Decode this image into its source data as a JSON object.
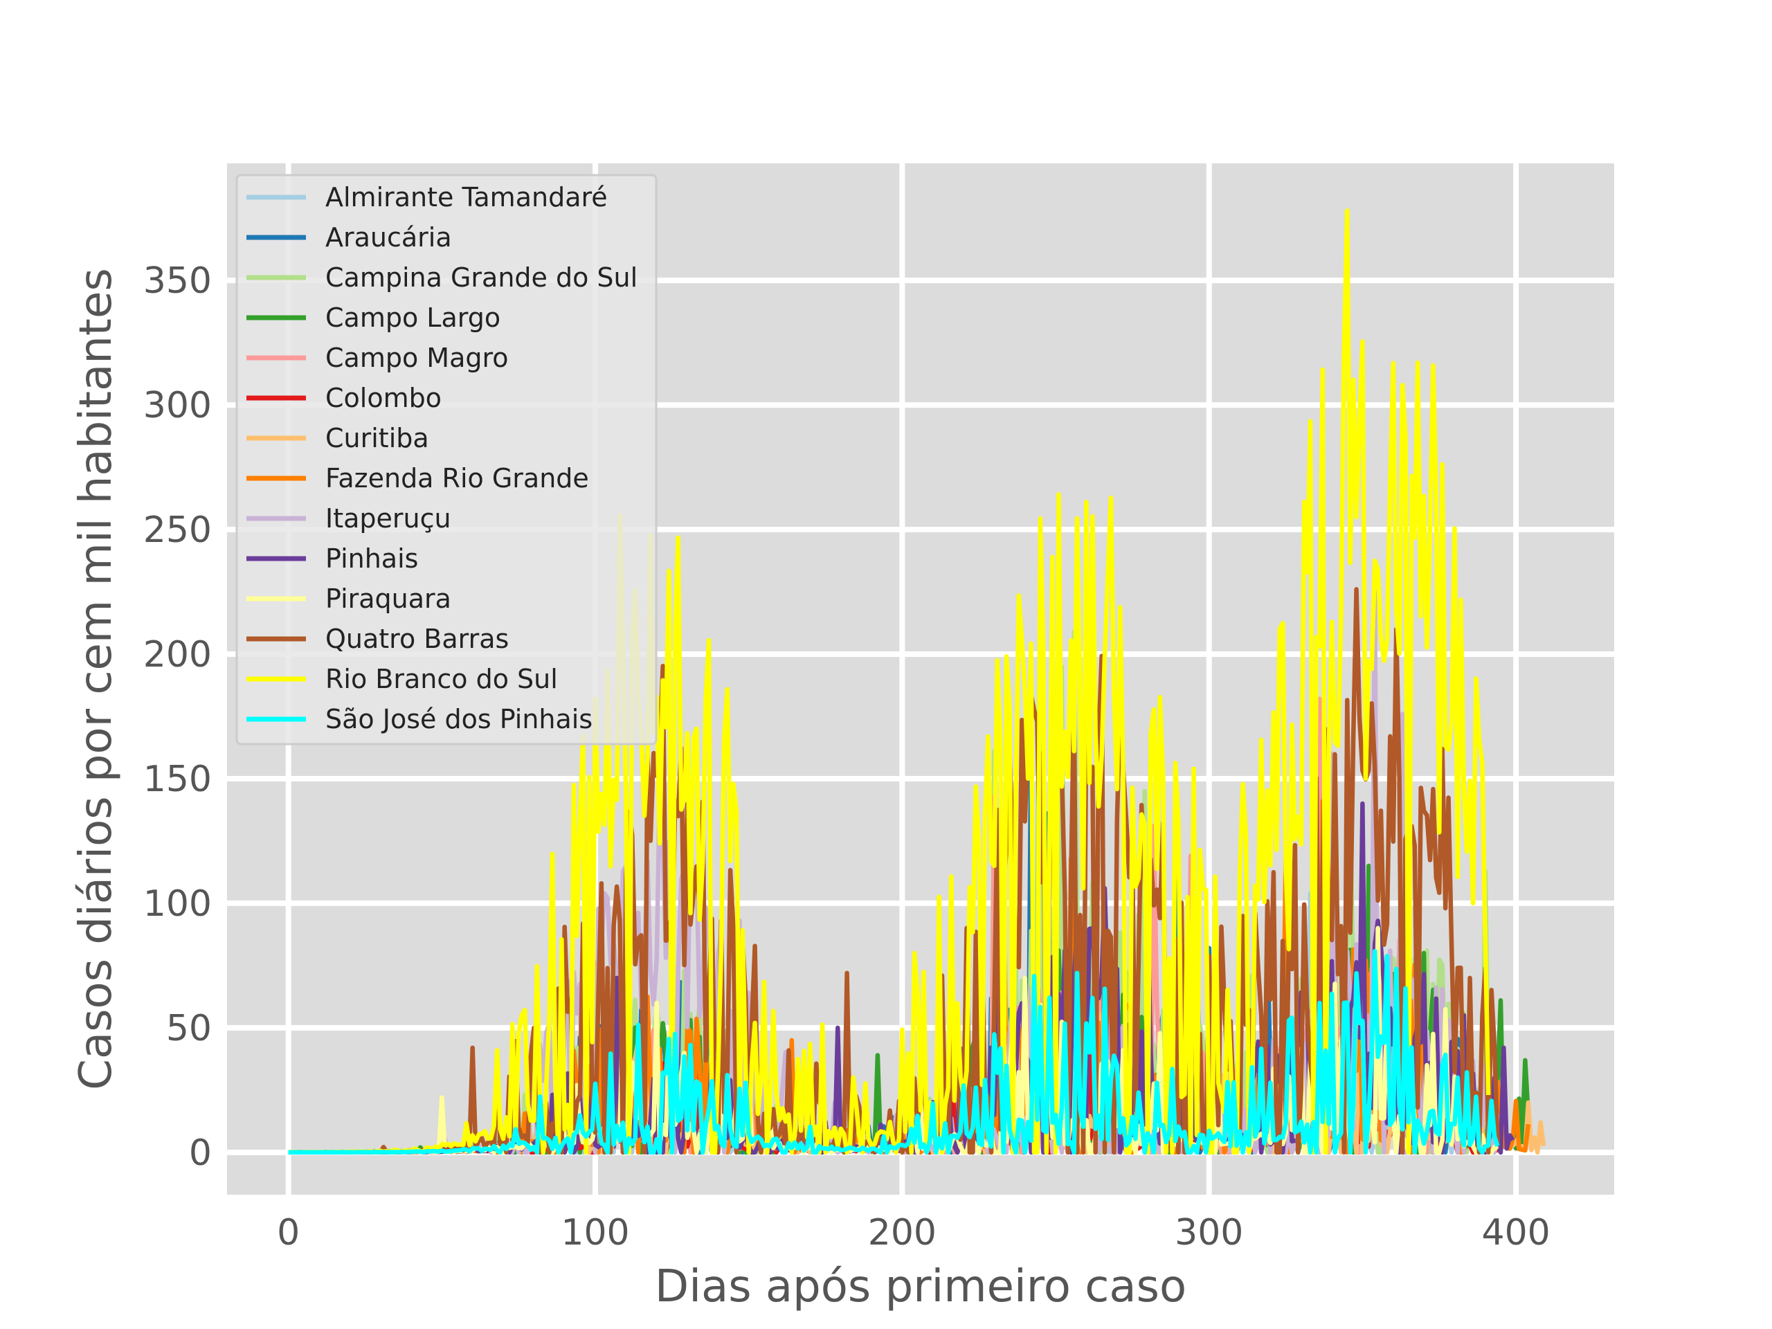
{
  "chart_data": {
    "type": "line",
    "title": "",
    "xlabel": "Dias após primeiro caso",
    "ylabel": "Casos diários por cem mil habitantes",
    "xlim": [
      -20,
      432
    ],
    "ylim": [
      -17,
      397
    ],
    "xticks": [
      0,
      100,
      200,
      300,
      400
    ],
    "yticks": [
      0,
      50,
      100,
      150,
      200,
      250,
      300,
      350
    ],
    "grid": true,
    "legend_position": "upper-left",
    "series": [
      {
        "name": "Almirante Tamandaré",
        "color": "#a6cee3",
        "length": 395,
        "base": 6,
        "waves": [
          1,
          1,
          1.3
        ],
        "spike": 0.4,
        "peaks": [
          [
            333,
            104
          ],
          [
            244,
            60
          ],
          [
            120,
            45
          ]
        ]
      },
      {
        "name": "Araucária",
        "color": "#1f78b4",
        "length": 395,
        "base": 8,
        "waves": [
          1.2,
          1.6,
          1.4
        ],
        "spike": 0.7,
        "peaks": [
          [
            89,
            60
          ],
          [
            242,
            169
          ],
          [
            247,
            136
          ],
          [
            290,
            116
          ],
          [
            296,
            100
          ],
          [
            319,
            80
          ],
          [
            338,
            125
          ],
          [
            300,
            82
          ]
        ]
      },
      {
        "name": "Campina Grande do Sul",
        "color": "#b2df8a",
        "length": 395,
        "base": 9,
        "waves": [
          1.2,
          2.0,
          1.6
        ],
        "spike": 0.8,
        "peaks": [
          [
            230,
            161
          ],
          [
            233,
            110
          ],
          [
            245,
            225
          ],
          [
            252,
            195
          ],
          [
            256,
            209
          ],
          [
            279,
            145
          ],
          [
            314,
            71
          ],
          [
            390,
            113
          ],
          [
            346,
            140
          ]
        ]
      },
      {
        "name": "Campo Largo",
        "color": "#33a02c",
        "length": 405,
        "base": 8,
        "waves": [
          1.0,
          1.5,
          1.5
        ],
        "spike": 0.6,
        "peaks": [
          [
            192,
            39
          ],
          [
            257,
            94
          ],
          [
            352,
            115
          ],
          [
            395,
            61
          ],
          [
            403,
            37
          ],
          [
            370,
            80
          ]
        ]
      },
      {
        "name": "Campo Magro",
        "color": "#fb9a99",
        "length": 395,
        "base": 7,
        "waves": [
          1.0,
          1.6,
          1.7
        ],
        "spike": 0.8,
        "peaks": [
          [
            226,
            112
          ],
          [
            230,
            143
          ],
          [
            282,
            131
          ],
          [
            294,
            119
          ],
          [
            336,
            182
          ],
          [
            340,
            145
          ],
          [
            226,
            90
          ]
        ]
      },
      {
        "name": "Colombo",
        "color": "#e31a1c",
        "length": 395,
        "base": 5,
        "waves": [
          1.1,
          1.3,
          1.3
        ],
        "spike": 0.4,
        "peaks": [
          [
            216,
            50
          ],
          [
            330,
            45
          ],
          [
            108,
            40
          ]
        ]
      },
      {
        "name": "Curitiba",
        "color": "#fdbf6f",
        "length": 410,
        "base": 8,
        "waves": [
          1.0,
          1.2,
          1.3
        ],
        "spike": 0.3,
        "peaks": [
          [
            404,
            20
          ],
          [
            408,
            12
          ],
          [
            355,
            30
          ],
          [
            240,
            28
          ]
        ]
      },
      {
        "name": "Fazenda Rio Grande",
        "color": "#ff7f00",
        "length": 405,
        "base": 7,
        "waves": [
          1.2,
          1.4,
          1.6
        ],
        "spike": 0.6,
        "peaks": [
          [
            100,
            76
          ],
          [
            233,
            121
          ],
          [
            255,
            118
          ],
          [
            325,
            120
          ],
          [
            337,
            141
          ],
          [
            164,
            45
          ],
          [
            395,
            12
          ]
        ]
      },
      {
        "name": "Itaperuçu",
        "color": "#cab2d6",
        "length": 395,
        "base": 8,
        "waves": [
          2.4,
          1.3,
          1.7
        ],
        "spike": 0.8,
        "peaks": [
          [
            98,
            131
          ],
          [
            112,
            111
          ],
          [
            117,
            117
          ],
          [
            121,
            146
          ],
          [
            131,
            128
          ],
          [
            147,
            93
          ],
          [
            150,
            64
          ],
          [
            354,
            225
          ],
          [
            363,
            176
          ],
          [
            340,
            160
          ]
        ]
      },
      {
        "name": "Pinhais",
        "color": "#6a3d9a",
        "length": 400,
        "base": 8,
        "waves": [
          1.0,
          1.6,
          1.6
        ],
        "spike": 0.7,
        "peaks": [
          [
            107,
            70
          ],
          [
            179,
            50
          ],
          [
            266,
            106
          ],
          [
            280,
            96
          ],
          [
            262,
            90
          ],
          [
            396,
            42
          ],
          [
            393,
            30
          ],
          [
            350,
            140
          ]
        ]
      },
      {
        "name": "Piraquara",
        "color": "#ffff99",
        "length": 395,
        "base": 7,
        "waves": [
          1.2,
          1.4,
          1.5
        ],
        "spike": 0.5,
        "peaks": [
          [
            50,
            22
          ],
          [
            120,
            60
          ],
          [
            240,
            70
          ],
          [
            355,
            90
          ]
        ]
      },
      {
        "name": "Quatro Barras",
        "color": "#b15928",
        "length": 395,
        "base": 12,
        "waves": [
          2.2,
          2.4,
          2.4
        ],
        "spike": 0.8,
        "peaks": [
          [
            60,
            42
          ],
          [
            80,
            50
          ],
          [
            104,
            74
          ],
          [
            108,
            93
          ],
          [
            182,
            72
          ],
          [
            221,
            90
          ],
          [
            244,
            173
          ],
          [
            250,
            185
          ],
          [
            315,
            96
          ],
          [
            326,
            85
          ],
          [
            348,
            226
          ],
          [
            359,
            167
          ],
          [
            366,
            131
          ],
          [
            377,
            98
          ],
          [
            385,
            70
          ],
          [
            332,
            55
          ]
        ]
      },
      {
        "name": "Rio Branco do Sul",
        "color": "#ffff00",
        "length": 392,
        "base": 16,
        "waves": [
          2.4,
          2.6,
          3.4
        ],
        "spike": 0.95,
        "peaks": [
          [
            121,
            124
          ],
          [
            135,
            117
          ],
          [
            131,
            96
          ],
          [
            204,
            80
          ],
          [
            230,
            115
          ],
          [
            259,
            106
          ],
          [
            345,
            378
          ],
          [
            348,
            255
          ],
          [
            355,
            234
          ],
          [
            359,
            268
          ],
          [
            351,
            150
          ],
          [
            340,
            213
          ],
          [
            379,
            173
          ],
          [
            386,
            100
          ],
          [
            390,
            85
          ],
          [
            277,
            110
          ]
        ]
      },
      {
        "name": "São José dos Pinhais",
        "color": "#00ffff",
        "length": 395,
        "base": 5,
        "waves": [
          1.7,
          2.1,
          2.4
        ],
        "spike": 0.3,
        "peaks": [
          [
            122,
            32
          ],
          [
            143,
            31
          ],
          [
            257,
            72
          ],
          [
            262,
            62
          ],
          [
            344,
            60
          ],
          [
            357,
            44
          ],
          [
            376,
            35
          ]
        ]
      }
    ]
  }
}
